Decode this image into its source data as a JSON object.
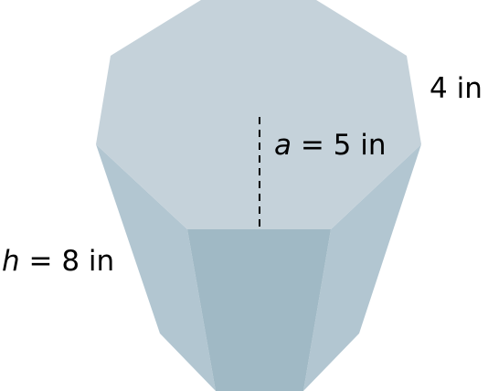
{
  "colors": {
    "top_face": "#c5d2da",
    "side_face_light": "#b2c6d1",
    "front_face": "#a0b9c5",
    "dashed_line": "#000000",
    "text": "#000000"
  },
  "labels": {
    "side": "4 in",
    "apothem_var": "a",
    "apothem_rest": " = 5 in",
    "height_var": "h",
    "height_rest": " = 8 in"
  }
}
